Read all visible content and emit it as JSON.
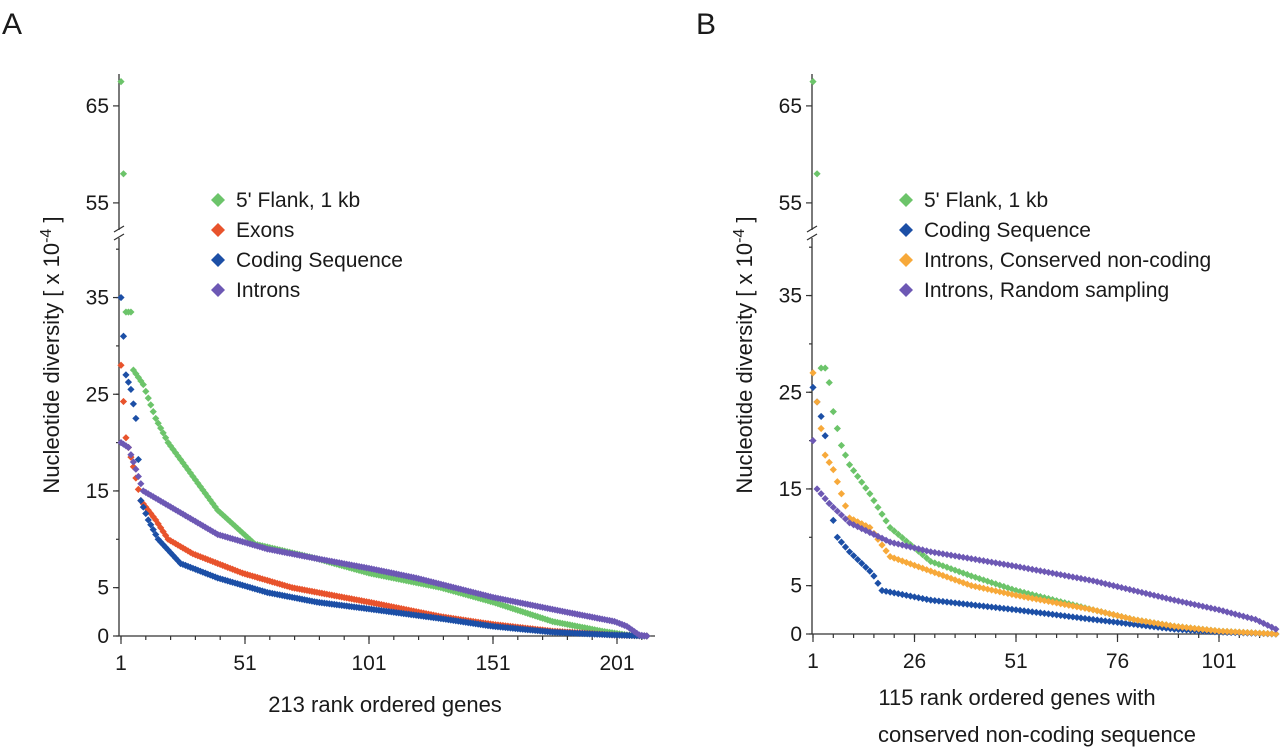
{
  "chart_data": [
    {
      "panel": "A",
      "type": "scatter",
      "xlabel": "213 rank ordered genes",
      "ylabel": "Nucleotide diversity [ x 10",
      "ylabel_exp": "-4",
      "ylabel_end": " ]",
      "n_genes": 213,
      "x_ticks": [
        "1",
        "51",
        "101",
        "151",
        "201"
      ],
      "x_tick_values": [
        1,
        51,
        101,
        151,
        201
      ],
      "y_ticks": [
        "0",
        "5",
        "15",
        "25",
        "35",
        "55",
        "65"
      ],
      "y_tick_values": [
        0,
        5,
        15,
        25,
        35,
        55,
        65
      ],
      "ylim": [
        0,
        68
      ],
      "y_axis_break": [
        40,
        52
      ],
      "legend_position": "upper-middle",
      "series": [
        {
          "name": "5' Flank, 1 kb",
          "color": "#6cc46a",
          "keypoints": [
            [
              1,
              67.5
            ],
            [
              2,
              58
            ],
            [
              3,
              33.5
            ],
            [
              4,
              33.5
            ],
            [
              5,
              33.5
            ],
            [
              6,
              27.5
            ],
            [
              10,
              26
            ],
            [
              15,
              22.5
            ],
            [
              20,
              20
            ],
            [
              30,
              16.5
            ],
            [
              40,
              13
            ],
            [
              55,
              9.5
            ],
            [
              80,
              8
            ],
            [
              101,
              6.5
            ],
            [
              130,
              5
            ],
            [
              151,
              3.5
            ],
            [
              175,
              1.5
            ],
            [
              195,
              0.5
            ],
            [
              205,
              0.1
            ],
            [
              213,
              0
            ]
          ]
        },
        {
          "name": "Exons",
          "color": "#e8532c",
          "keypoints": [
            [
              1,
              28
            ],
            [
              3,
              20.5
            ],
            [
              6,
              17.5
            ],
            [
              9,
              14
            ],
            [
              15,
              12
            ],
            [
              20,
              10
            ],
            [
              30,
              8.5
            ],
            [
              50,
              6.5
            ],
            [
              70,
              5
            ],
            [
              101,
              3.5
            ],
            [
              130,
              2
            ],
            [
              151,
              1.2
            ],
            [
              175,
              0.5
            ],
            [
              200,
              0.1
            ],
            [
              213,
              0
            ]
          ]
        },
        {
          "name": "Coding Sequence",
          "color": "#1c4fa6",
          "keypoints": [
            [
              1,
              35
            ],
            [
              3,
              27
            ],
            [
              5,
              25.5
            ],
            [
              7,
              22.5
            ],
            [
              9,
              14
            ],
            [
              12,
              12
            ],
            [
              16,
              10
            ],
            [
              25,
              7.5
            ],
            [
              40,
              6
            ],
            [
              60,
              4.5
            ],
            [
              80,
              3.5
            ],
            [
              101,
              2.8
            ],
            [
              130,
              1.8
            ],
            [
              151,
              1
            ],
            [
              175,
              0.4
            ],
            [
              200,
              0.1
            ],
            [
              213,
              0
            ]
          ]
        },
        {
          "name": "Introns",
          "color": "#6d58b4",
          "keypoints": [
            [
              1,
              20
            ],
            [
              4,
              19.5
            ],
            [
              6,
              18
            ],
            [
              10,
              15
            ],
            [
              20,
              13.5
            ],
            [
              40,
              10.5
            ],
            [
              60,
              9
            ],
            [
              80,
              8
            ],
            [
              101,
              7
            ],
            [
              120,
              6
            ],
            [
              151,
              4
            ],
            [
              180,
              2.5
            ],
            [
              200,
              1.5
            ],
            [
              205,
              1
            ],
            [
              210,
              0.1
            ],
            [
              213,
              0
            ]
          ]
        }
      ]
    },
    {
      "panel": "B",
      "type": "scatter",
      "xlabel": "115 rank ordered genes with",
      "xlabel2": "conserved non-coding sequence",
      "ylabel": "Nucleotide diversity [ x 10",
      "ylabel_exp": "-4",
      "ylabel_end": " ]",
      "n_genes": 115,
      "x_ticks": [
        "1",
        "26",
        "51",
        "76",
        "101"
      ],
      "x_tick_values": [
        1,
        26,
        51,
        76,
        101
      ],
      "y_ticks": [
        "0",
        "5",
        "15",
        "25",
        "35",
        "55",
        "65"
      ],
      "y_tick_values": [
        0,
        5,
        15,
        25,
        35,
        55,
        65
      ],
      "ylim": [
        0,
        68
      ],
      "y_axis_break": [
        40,
        52
      ],
      "legend_position": "upper-right",
      "series": [
        {
          "name": "5' Flank, 1 kb",
          "color": "#6cc46a",
          "keypoints": [
            [
              1,
              67.5
            ],
            [
              2,
              58
            ],
            [
              3,
              27.5
            ],
            [
              4,
              27.5
            ],
            [
              5,
              26
            ],
            [
              6,
              23
            ],
            [
              8,
              19.5
            ],
            [
              10,
              17.5
            ],
            [
              15,
              14.5
            ],
            [
              20,
              11
            ],
            [
              30,
              7.5
            ],
            [
              40,
              6
            ],
            [
              51,
              4.5
            ],
            [
              70,
              2.5
            ],
            [
              80,
              1.5
            ],
            [
              90,
              0.8
            ],
            [
              101,
              0.3
            ],
            [
              115,
              0
            ]
          ]
        },
        {
          "name": "Coding Sequence",
          "color": "#1c4fa6",
          "keypoints": [
            [
              1,
              25.5
            ],
            [
              3,
              22.5
            ],
            [
              4,
              20.5
            ],
            [
              5,
              13.5
            ],
            [
              7,
              10
            ],
            [
              10,
              8.5
            ],
            [
              15,
              6.5
            ],
            [
              16,
              6
            ],
            [
              18,
              4.5
            ],
            [
              30,
              3.5
            ],
            [
              51,
              2.5
            ],
            [
              70,
              1.5
            ],
            [
              90,
              0.5
            ],
            [
              101,
              0.2
            ],
            [
              115,
              0
            ]
          ]
        },
        {
          "name": "Introns, Conserved non-coding",
          "color": "#f7a93a",
          "keypoints": [
            [
              1,
              27
            ],
            [
              2,
              24
            ],
            [
              4,
              18.5
            ],
            [
              6,
              17
            ],
            [
              8,
              14.5
            ],
            [
              10,
              12
            ],
            [
              15,
              11
            ],
            [
              20,
              8
            ],
            [
              30,
              6.5
            ],
            [
              40,
              5
            ],
            [
              51,
              4
            ],
            [
              70,
              2.5
            ],
            [
              80,
              1.5
            ],
            [
              90,
              0.8
            ],
            [
              101,
              0.3
            ],
            [
              115,
              0
            ]
          ]
        },
        {
          "name": "Introns, Random sampling",
          "color": "#6d58b4",
          "keypoints": [
            [
              1,
              20
            ],
            [
              2,
              15
            ],
            [
              5,
              13.5
            ],
            [
              10,
              11.5
            ],
            [
              20,
              9.5
            ],
            [
              30,
              8.5
            ],
            [
              51,
              7
            ],
            [
              70,
              5.5
            ],
            [
              80,
              4.5
            ],
            [
              90,
              3.5
            ],
            [
              101,
              2.5
            ],
            [
              110,
              1.5
            ],
            [
              115,
              0.5
            ]
          ]
        }
      ]
    }
  ]
}
